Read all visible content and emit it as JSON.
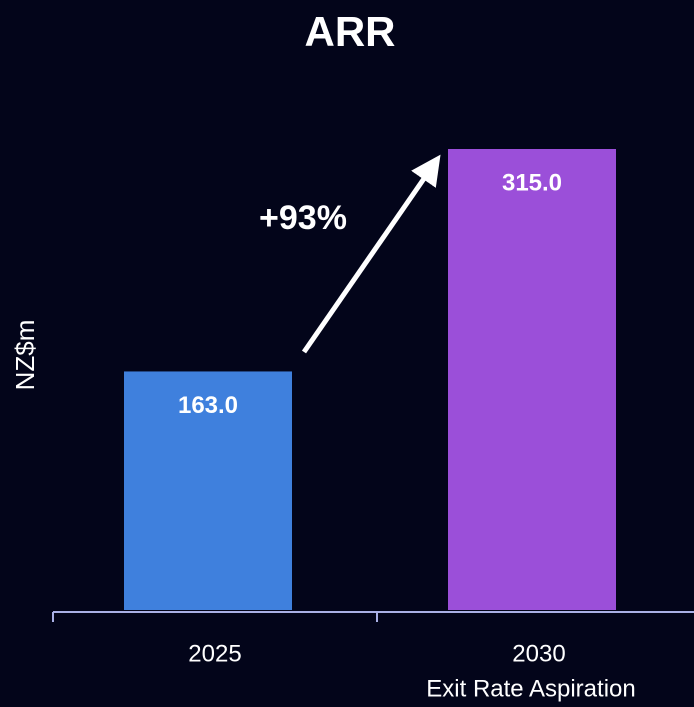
{
  "chart_data": {
    "type": "bar",
    "title": "ARR",
    "y_label": "NZ$m",
    "categories": [
      "2025",
      "2030"
    ],
    "category_sublabels": [
      null,
      "Exit Rate Aspiration"
    ],
    "values": [
      163,
      315
    ],
    "value_labels": [
      "163.0",
      "315.0"
    ],
    "colors": [
      "#3f80dd",
      "#9b4fd9"
    ],
    "annotation": "+93%"
  }
}
